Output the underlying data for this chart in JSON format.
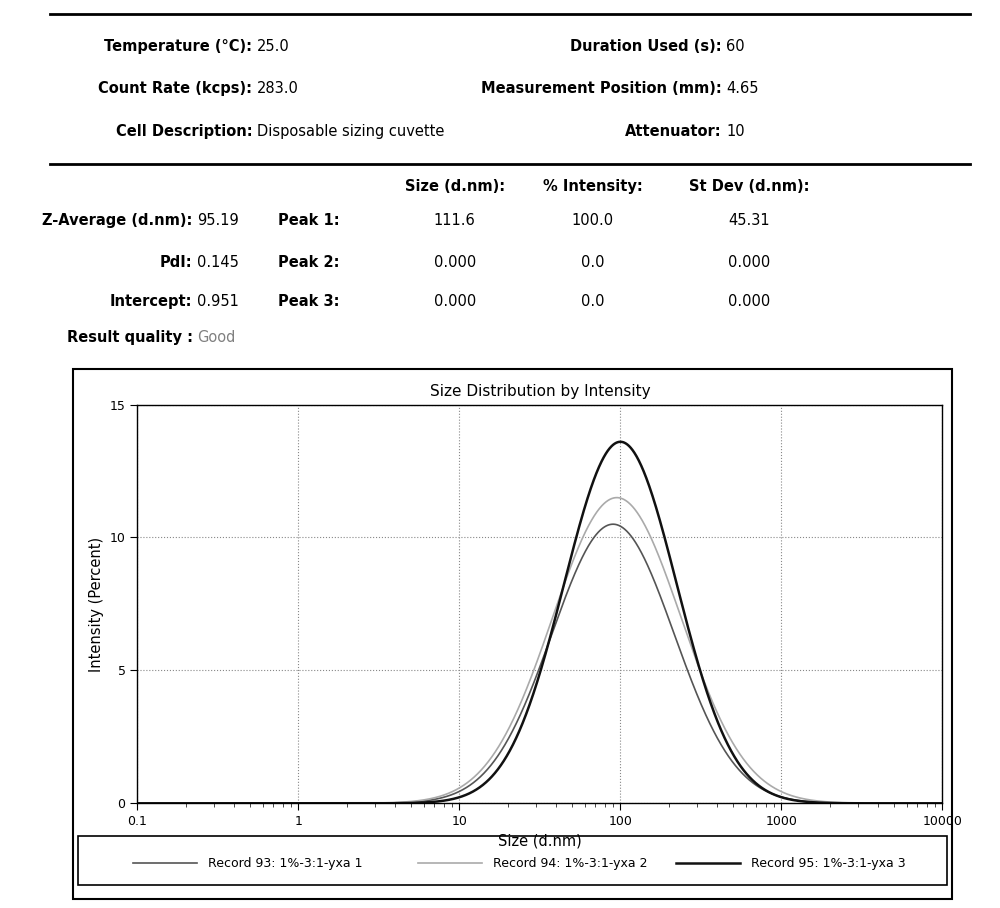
{
  "title": "Size Distribution by Intensity",
  "xlabel": "Size (d.nm)",
  "ylabel": "Intensity (Percent)",
  "ylim": [
    0,
    15
  ],
  "yticks": [
    0,
    5,
    10,
    15
  ],
  "xtick_labels": [
    "0.1",
    "1",
    "10",
    "100",
    "1000",
    "10000"
  ],
  "xtick_values": [
    0.1,
    1,
    10,
    100,
    1000,
    10000
  ],
  "left_header": [
    [
      "Temperature (°C):",
      "25.0"
    ],
    [
      "Count Rate (kcps):",
      "283.0"
    ],
    [
      "Cell Description:",
      "Disposable sizing cuvette"
    ]
  ],
  "right_header": [
    [
      "Duration Used (s):",
      "60"
    ],
    [
      "Measurement Position (mm):",
      "4.65"
    ],
    [
      "Attenuator:",
      "10"
    ]
  ],
  "left_table": [
    [
      "Z-Average (d.nm):",
      "95.19"
    ],
    [
      "PdI:",
      "0.145"
    ],
    [
      "Intercept:",
      "0.951"
    ],
    [
      "Result quality :",
      "Good"
    ]
  ],
  "result_quality_color": "#808080",
  "col_headers": [
    "Size (d.nm):",
    "% Intensity:",
    "St Dev (d.nm):"
  ],
  "peaks": [
    [
      "Peak 1:",
      "111.6",
      "100.0",
      "45.31"
    ],
    [
      "Peak 2:",
      "0.000",
      "0.0",
      "0.000"
    ],
    [
      "Peak 3:",
      "0.000",
      "0.0",
      "0.000"
    ]
  ],
  "records": [
    {
      "label": "Record 93: 1%-3:1-yxa 1",
      "color": "#555555",
      "linewidth": 1.2,
      "peak": 90,
      "sigma": 0.38,
      "height": 10.5
    },
    {
      "label": "Record 94: 1%-3:1-yxa 2",
      "color": "#aaaaaa",
      "linewidth": 1.2,
      "peak": 95,
      "sigma": 0.4,
      "height": 11.5
    },
    {
      "label": "Record 95: 1%-3:1-yxa 3",
      "color": "#111111",
      "linewidth": 1.8,
      "peak": 100,
      "sigma": 0.35,
      "height": 13.6
    }
  ],
  "background_color": "#ffffff",
  "grid_color": "#888888",
  "grid_style": ":"
}
